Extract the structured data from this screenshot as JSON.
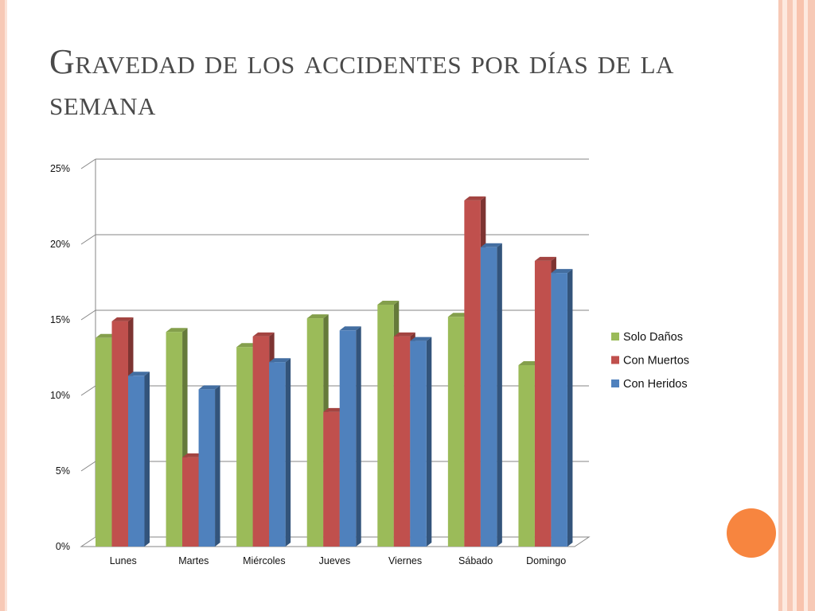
{
  "slide": {
    "title": "Gravedad de los accidentes por días de la semana"
  },
  "colors": {
    "solo_danos": "#9bbb59",
    "con_muertos": "#c0504d",
    "con_heridos": "#4f81bd",
    "accent_orb": "#f7853f",
    "border_peach": "#f7c9b6"
  },
  "chart_data": {
    "type": "bar",
    "style": "3d-clustered-column",
    "categories": [
      "Lunes",
      "Martes",
      "Miércoles",
      "Jueves",
      "Viernes",
      "Sábado",
      "Domingo"
    ],
    "series": [
      {
        "name": "Solo Daños",
        "color": "#9bbb59",
        "values": [
          13.8,
          14.2,
          13.2,
          15.1,
          16.0,
          15.2,
          12.0
        ]
      },
      {
        "name": "Con Muertos",
        "color": "#c0504d",
        "values": [
          14.9,
          5.9,
          13.9,
          8.9,
          13.9,
          22.9,
          18.9
        ]
      },
      {
        "name": "Con Heridos",
        "color": "#4f81bd",
        "values": [
          11.3,
          10.4,
          12.2,
          14.3,
          13.6,
          19.8,
          18.1
        ]
      }
    ],
    "yticks": [
      "0%",
      "5%",
      "10%",
      "15%",
      "20%",
      "25%"
    ],
    "ylim": [
      0,
      25
    ],
    "grid": true,
    "legend_position": "right"
  }
}
